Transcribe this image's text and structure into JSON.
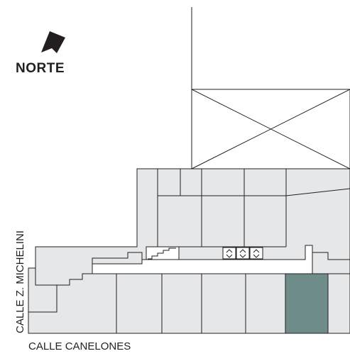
{
  "compass": {
    "label": "NORTE",
    "icon": "north-arrow-icon"
  },
  "streets": {
    "south": "CALLE CANELONES",
    "west": "CALLE Z. MICHELINI"
  },
  "colors": {
    "background": "#ffffff",
    "unit_fill": "#e6e7e8",
    "highlight_unit": "#6e8c8a",
    "line": "#231f20"
  },
  "icons": [
    "north-arrow-icon",
    "stairs-icon",
    "elevator-icon"
  ],
  "highlighted_unit": "highlighted-unit-bottom-right"
}
